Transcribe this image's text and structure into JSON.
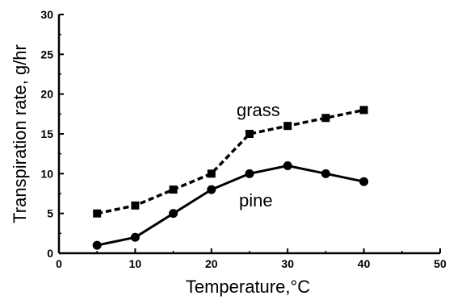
{
  "chart_data": {
    "type": "line",
    "title": "",
    "xlabel": "Temperature,°C",
    "ylabel": "Transpiration rate, g/hr",
    "xlim": [
      0,
      50
    ],
    "ylim": [
      0,
      30
    ],
    "xticks": [
      0,
      10,
      20,
      30,
      40,
      50
    ],
    "yticks": [
      0,
      5,
      10,
      15,
      20,
      25,
      30
    ],
    "grid": false,
    "legend": "none",
    "series": [
      {
        "name": "grass",
        "line": "dashed",
        "marker": "square",
        "color": "#000000",
        "x": [
          5,
          10,
          15,
          20,
          25,
          30,
          35,
          40
        ],
        "y": [
          5,
          6,
          8,
          10,
          15,
          16,
          17,
          18
        ]
      },
      {
        "name": "pine",
        "line": "solid",
        "marker": "circle",
        "color": "#000000",
        "x": [
          5,
          10,
          15,
          20,
          25,
          30,
          35,
          40
        ],
        "y": [
          1,
          2,
          5,
          8,
          10,
          11,
          10,
          9
        ]
      }
    ]
  }
}
